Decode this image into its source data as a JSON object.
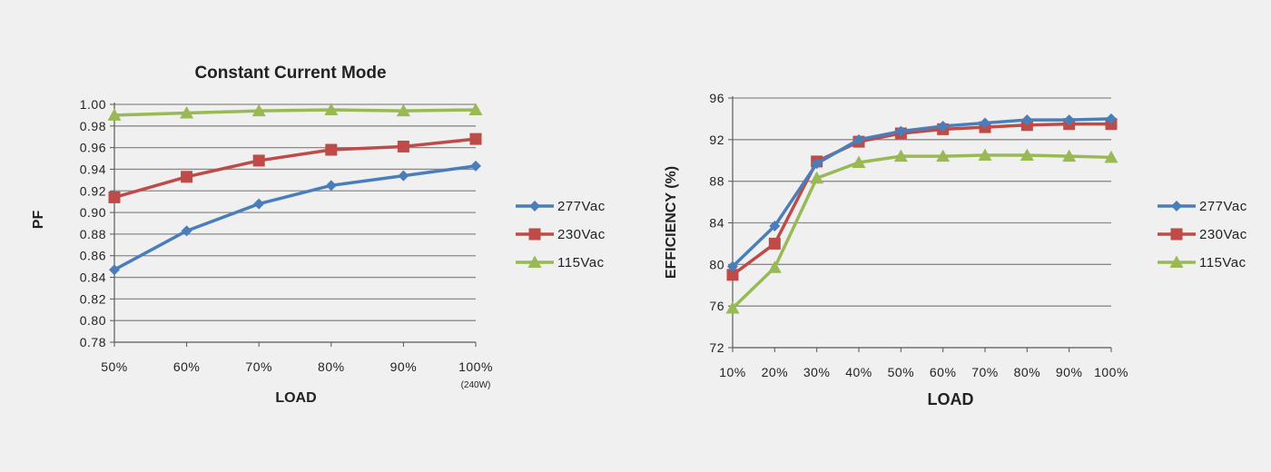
{
  "chart_data": [
    {
      "type": "line",
      "title": "Constant Current Mode",
      "xlabel": "LOAD",
      "ylabel": "PF",
      "categories": [
        "50%",
        "60%",
        "70%",
        "80%",
        "90%",
        "100%"
      ],
      "category_note": "(240W)",
      "ylim": [
        0.78,
        1.0
      ],
      "yticks": [
        "1.00",
        "0.98",
        "0.96",
        "0.94",
        "0.92",
        "0.90",
        "0.88",
        "0.86",
        "0.84",
        "0.82",
        "0.80",
        "0.78"
      ],
      "grid": "horizontal",
      "legend_position": "right",
      "series": [
        {
          "name": "277Vac",
          "color": "#4a7ebb",
          "marker": "diamond",
          "values": [
            0.847,
            0.883,
            0.908,
            0.925,
            0.934,
            0.943
          ]
        },
        {
          "name": "230Vac",
          "color": "#be4b48",
          "marker": "square",
          "values": [
            0.914,
            0.933,
            0.948,
            0.958,
            0.961,
            0.968
          ]
        },
        {
          "name": "115Vac",
          "color": "#98b954",
          "marker": "triangle",
          "values": [
            0.99,
            0.992,
            0.994,
            0.995,
            0.994,
            0.995
          ]
        }
      ]
    },
    {
      "type": "line",
      "title": "",
      "xlabel": "LOAD",
      "ylabel": "EFFICIENCY (%)",
      "categories": [
        "10%",
        "20%",
        "30%",
        "40%",
        "50%",
        "60%",
        "70%",
        "80%",
        "90%",
        "100%"
      ],
      "ylim": [
        72,
        96
      ],
      "yticks": [
        "96",
        "92",
        "88",
        "84",
        "80",
        "76",
        "72"
      ],
      "grid": "horizontal",
      "legend_position": "right",
      "series": [
        {
          "name": "277Vac",
          "color": "#4a7ebb",
          "marker": "diamond",
          "values": [
            79.8,
            83.7,
            89.7,
            92.0,
            92.8,
            93.3,
            93.6,
            93.9,
            93.9,
            94.0
          ]
        },
        {
          "name": "230Vac",
          "color": "#be4b48",
          "marker": "square",
          "values": [
            79.0,
            82.0,
            89.9,
            91.8,
            92.6,
            93.0,
            93.2,
            93.4,
            93.5,
            93.5
          ]
        },
        {
          "name": "115Vac",
          "color": "#98b954",
          "marker": "triangle",
          "values": [
            75.8,
            79.7,
            88.3,
            89.8,
            90.4,
            90.4,
            90.5,
            90.5,
            90.4,
            90.3
          ]
        }
      ]
    }
  ]
}
